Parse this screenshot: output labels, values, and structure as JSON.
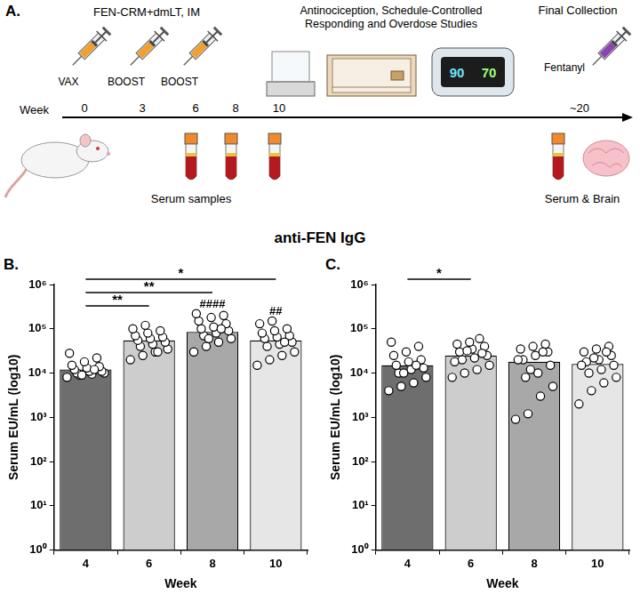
{
  "diagram": {
    "panel": "A.",
    "vaccine": "FEN-CRM+dmLT, IM",
    "injections": [
      "VAX",
      "BOOST",
      "BOOST"
    ],
    "timeline_label": "Week",
    "weeks": [
      "0",
      "3",
      "6",
      "8",
      "10"
    ],
    "final_week": "~20",
    "studies": "Antinociception, Schedule-Controlled Responding and Overdose Studies",
    "oximeter_display": [
      "90",
      "70"
    ],
    "final_collection": "Final Collection",
    "final_drug": "Fentanyl",
    "samples": "Serum samples",
    "final_samples": "Serum & Brain"
  },
  "title": "anti-FEN IgG",
  "chart_data": [
    {
      "panel": "B.",
      "type": "bar",
      "categories": [
        "4",
        "6",
        "8",
        "10"
      ],
      "values": [
        12000,
        55000,
        85000,
        55000
      ],
      "colors": [
        "#6e6e6e",
        "#cdcdcd",
        "#a8a8a8",
        "#e6e6e6"
      ],
      "points": [
        [
          8000,
          9000,
          9500,
          10000,
          10000,
          11000,
          11000,
          12000,
          13000,
          14000,
          15000,
          18000,
          22000,
          28000,
          9000,
          12000
        ],
        [
          20000,
          25000,
          30000,
          35000,
          40000,
          45000,
          50000,
          55000,
          60000,
          65000,
          70000,
          80000,
          90000,
          100000,
          120000,
          30000
        ],
        [
          30000,
          40000,
          50000,
          60000,
          70000,
          80000,
          90000,
          100000,
          110000,
          130000,
          150000,
          180000,
          200000,
          220000,
          60000,
          100000
        ],
        [
          15000,
          20000,
          25000,
          30000,
          40000,
          45000,
          50000,
          60000,
          65000,
          70000,
          80000,
          90000,
          100000,
          130000,
          150000,
          50000
        ]
      ],
      "marker": "circle",
      "x_label": "Week",
      "y_label": "Serum EU/mL (log10)",
      "log": "y",
      "ylim": [
        1,
        1000000
      ],
      "yticks": [
        {
          "value": 1,
          "label": "10⁰"
        },
        {
          "value": 10,
          "label": "10¹"
        },
        {
          "value": 100,
          "label": "10²"
        },
        {
          "value": 1000,
          "label": "10³"
        },
        {
          "value": 10000,
          "label": "10⁴"
        },
        {
          "value": 100000,
          "label": "10⁵"
        },
        {
          "value": 1000000,
          "label": "10⁶"
        }
      ],
      "grid": false,
      "brackets": [
        {
          "from": "4",
          "to": "10",
          "label": "*"
        },
        {
          "from": "4",
          "to": "8",
          "label": "**"
        },
        {
          "from": "4",
          "to": "6",
          "label": "**"
        }
      ],
      "marks": [
        {
          "category": "8",
          "label": "####"
        },
        {
          "category": "10",
          "label": "##"
        }
      ]
    },
    {
      "panel": "C.",
      "type": "bar",
      "categories": [
        "4",
        "6",
        "8",
        "10"
      ],
      "values": [
        15000,
        25000,
        18000,
        16000
      ],
      "colors": [
        "#6e6e6e",
        "#cdcdcd",
        "#a8a8a8",
        "#e6e6e6"
      ],
      "points": [
        [
          4000,
          5000,
          6000,
          8000,
          10000,
          12000,
          13000,
          15000,
          18000,
          20000,
          25000,
          30000,
          40000,
          50000,
          10000,
          15000
        ],
        [
          8000,
          10000,
          12000,
          15000,
          20000,
          22000,
          25000,
          30000,
          35000,
          40000,
          45000,
          50000,
          28000,
          18000,
          32000,
          60000
        ],
        [
          900,
          1200,
          3000,
          5000,
          8000,
          10000,
          15000,
          20000,
          25000,
          30000,
          35000,
          40000,
          45000,
          20000,
          12000,
          30000
        ],
        [
          2000,
          4000,
          6000,
          8000,
          10000,
          12000,
          15000,
          18000,
          20000,
          25000,
          30000,
          35000,
          40000,
          15000,
          22000,
          30000
        ]
      ],
      "marker": "circle",
      "x_label": "Week",
      "y_label": "Serum EU/mL (log10)",
      "log": "y",
      "ylim": [
        1,
        1000000
      ],
      "yticks": [
        {
          "value": 1,
          "label": "10⁰"
        },
        {
          "value": 10,
          "label": "10¹"
        },
        {
          "value": 100,
          "label": "10²"
        },
        {
          "value": 1000,
          "label": "10³"
        },
        {
          "value": 10000,
          "label": "10⁴"
        },
        {
          "value": 100000,
          "label": "10⁵"
        },
        {
          "value": 1000000,
          "label": "10⁶"
        }
      ],
      "grid": false,
      "brackets": [
        {
          "from": "4",
          "to": "6",
          "label": "*"
        }
      ],
      "marks": []
    }
  ]
}
